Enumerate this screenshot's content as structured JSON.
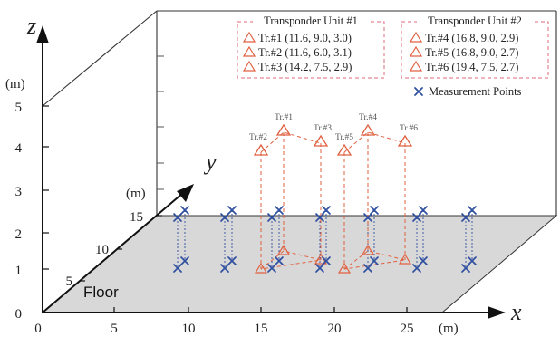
{
  "axes": {
    "x_name": "x",
    "y_name": "y",
    "z_name": "z",
    "x_unit": "(m)",
    "y_unit": "(m)",
    "z_unit": "(m)",
    "x_ticks": [
      "0",
      "5",
      "10",
      "15",
      "20",
      "25"
    ],
    "y_ticks": [
      "5",
      "10",
      "15"
    ],
    "z_ticks": [
      "0",
      "1",
      "2",
      "3",
      "4",
      "5"
    ]
  },
  "floor_label": "Floor",
  "colors": {
    "transponder": "#e06040",
    "measurement": "#2f4fa0",
    "floor": "#d8d8d8",
    "frame": "#333333",
    "legend_border": "#e26a7a"
  },
  "legend": {
    "group1_title": "Transponder Unit #1",
    "group2_title": "Transponder Unit #2",
    "group1_items": [
      "Tr.#1 (11.6, 9.0, 3.0)",
      "Tr.#2 (11.6, 6.0, 3.1)",
      "Tr.#3 (14.2, 7.5, 2.9)"
    ],
    "group2_items": [
      "Tr.#4 (16.8, 9.0, 2.9)",
      "Tr.#5 (16.8, 9.0, 2.7)",
      "Tr.#6 (19.4, 7.5, 2.7)"
    ],
    "measurement_label": "Measurement Points",
    "transponder_icon": "triangle-icon",
    "measurement_icon": "cross-icon"
  },
  "transponders": [
    {
      "label": "Tr.#1",
      "x": 11.6,
      "y": 9.0,
      "z": 3.0
    },
    {
      "label": "Tr.#2",
      "x": 11.6,
      "y": 6.0,
      "z": 3.1
    },
    {
      "label": "Tr.#3",
      "x": 14.2,
      "y": 7.5,
      "z": 2.9
    },
    {
      "label": "Tr.#4",
      "x": 16.8,
      "y": 9.0,
      "z": 2.9
    },
    {
      "label": "Tr.#5",
      "x": 16.8,
      "y": 9.0,
      "z": 2.7
    },
    {
      "label": "Tr.#6",
      "x": 19.4,
      "y": 7.5,
      "z": 2.7
    }
  ]
}
